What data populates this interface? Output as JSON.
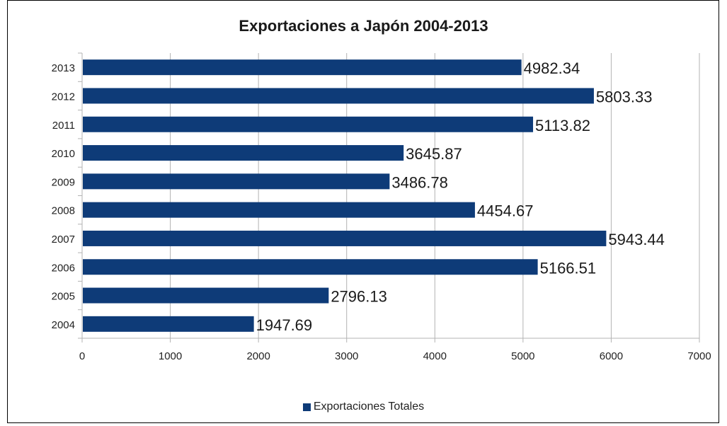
{
  "chart_data": {
    "type": "bar",
    "orientation": "horizontal",
    "title": "Exportaciones a Japón 2004-2013",
    "categories": [
      "2013",
      "2012",
      "2011",
      "2010",
      "2009",
      "2008",
      "2007",
      "2006",
      "2005",
      "2004"
    ],
    "series": [
      {
        "name": "Exportaciones Totales",
        "values": [
          4982.34,
          5803.33,
          5113.82,
          3645.87,
          3486.78,
          4454.67,
          5943.44,
          5166.51,
          2796.13,
          1947.69
        ],
        "value_labels": [
          "4982.34",
          "5803.33",
          "5113.82",
          "3645.87",
          "3486.78",
          "4454.67",
          "5943.44",
          "5166.51",
          "2796.13",
          "1947.69"
        ],
        "color": "#0e3b78"
      }
    ],
    "xlim": [
      0,
      7000
    ],
    "xticks": [
      "0",
      "1000",
      "2000",
      "3000",
      "4000",
      "5000",
      "6000",
      "7000"
    ],
    "xlabel": "",
    "ylabel": "",
    "grid": "vertical",
    "legend": "bottom"
  },
  "colors": {
    "bar": "#0e3b78",
    "grid": "#b3b3b3",
    "axis": "#b3b3b3",
    "frame": "#000000"
  }
}
